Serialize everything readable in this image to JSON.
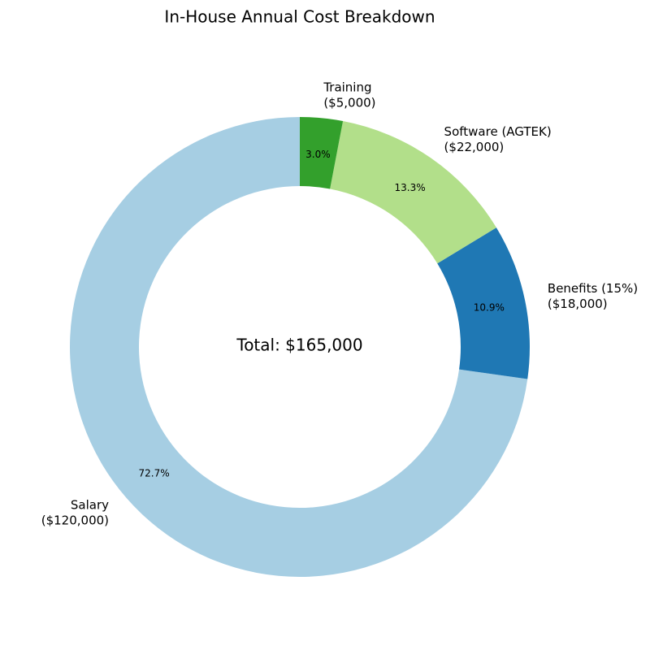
{
  "chart_data": {
    "type": "donut",
    "title": "In-House Annual Cost Breakdown",
    "categories": [
      "Salary",
      "Benefits (15%)",
      "Software (AGTEK)",
      "Training"
    ],
    "category_amounts": [
      "($120,000)",
      "($18,000)",
      "($22,000)",
      "($5,000)"
    ],
    "values": [
      72.7,
      10.9,
      13.3,
      3.0
    ],
    "value_labels": [
      "72.7%",
      "10.9%",
      "13.3%",
      "3.0%"
    ],
    "colors": [
      "#a6cee3",
      "#1f78b4",
      "#b2df8a",
      "#33a02c"
    ],
    "center_label": "Total: $165,000"
  }
}
